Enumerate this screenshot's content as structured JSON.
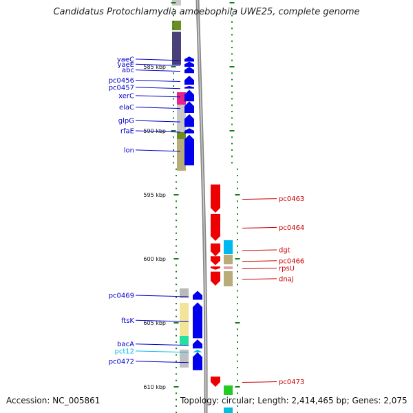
{
  "title": "Candidatus Protochlamydia amoebophila UWE25, complete genome",
  "footer": {
    "accession": "Accession: NC_005861",
    "topology": "Topology: circular; Length: 2,414,465 bp; Genes: 2,075"
  },
  "scale": {
    "ticks": [
      {
        "label": "585 kbp",
        "kbp": 585
      },
      {
        "label": "590 kbp",
        "kbp": 590
      },
      {
        "label": "595 kbp",
        "kbp": 595
      },
      {
        "label": "600 kbp",
        "kbp": 600
      },
      {
        "label": "605 kbp",
        "kbp": 605
      },
      {
        "label": "610 kbp",
        "kbp": 610
      }
    ]
  },
  "colors": {
    "reverse_strand": "#0000ee",
    "forward_strand": "#ee0000",
    "leader_left": "#0000cc",
    "leader_right": "#cc0000",
    "rna_label": "#00bbee",
    "backbone": "#888888"
  },
  "genes_left": [
    {
      "name": "yaeC",
      "start": 584.2,
      "end": 584.6
    },
    {
      "name": "yaeE",
      "start": 584.6,
      "end": 585.0
    },
    {
      "name": "abc",
      "start": 585.0,
      "end": 585.5
    },
    {
      "name": "pc0456",
      "start": 585.7,
      "end": 586.4
    },
    {
      "name": "pc0457",
      "start": 586.5,
      "end": 586.7
    },
    {
      "name": "xerC",
      "start": 586.8,
      "end": 587.7
    },
    {
      "name": "elaC",
      "start": 587.7,
      "end": 588.6
    },
    {
      "name": "glpG",
      "start": 588.7,
      "end": 589.7
    },
    {
      "name": "rfaE",
      "start": 589.8,
      "end": 590.2
    },
    {
      "name": "lon",
      "start": 590.3,
      "end": 592.7
    },
    {
      "name": "pc0469",
      "start": 602.5,
      "end": 603.2
    },
    {
      "name": "ftsK",
      "start": 603.4,
      "end": 606.2
    },
    {
      "name": "bacA",
      "start": 606.3,
      "end": 607.0
    },
    {
      "name": "pct12",
      "start": 607.1,
      "end": 607.3,
      "rna": true
    },
    {
      "name": "pc0472",
      "start": 607.3,
      "end": 608.7
    }
  ],
  "genes_right": [
    {
      "name": "pc0463",
      "start": 594.2,
      "end": 596.4
    },
    {
      "name": "pc0464",
      "start": 596.5,
      "end": 598.6
    },
    {
      "name": "dgt",
      "start": 598.8,
      "end": 599.8
    },
    {
      "name": "pc0466",
      "start": 599.8,
      "end": 600.5
    },
    {
      "name": "rpsU",
      "start": 600.6,
      "end": 600.85
    },
    {
      "name": "dnaJ",
      "start": 601.0,
      "end": 602.1
    },
    {
      "name": "pc0473",
      "start": 609.2,
      "end": 610.0
    }
  ]
}
